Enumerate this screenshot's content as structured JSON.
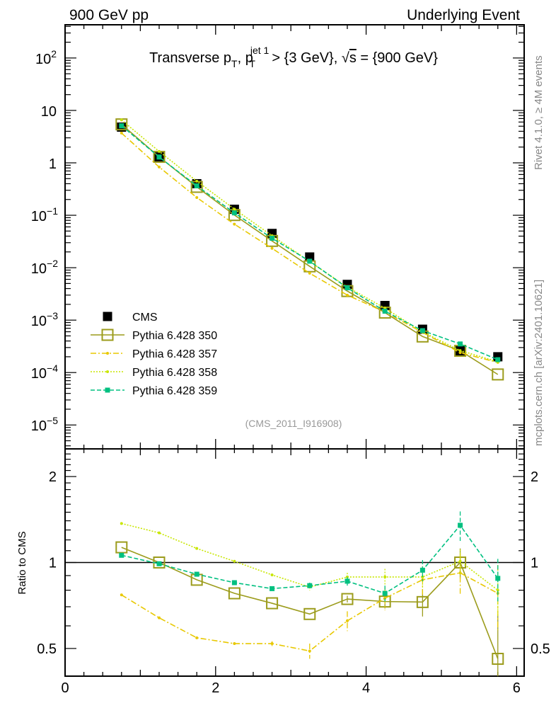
{
  "header": {
    "left": "900 GeV pp",
    "right": "Underlying Event"
  },
  "side_text": {
    "rivet": "Rivet 4.1.0, ≥ 4M events",
    "mcplots": "mcplots.cern.ch [arXiv:2401.10621]"
  },
  "chart_data": {
    "type": "line",
    "title": "Transverse p_T, p_T^{jet 1} > {3 GeV}, √s = {900 GeV}",
    "title_parts": {
      "a": "Transverse p",
      "sub1": "T",
      "b": ", p",
      "sup2": "jet 1",
      "sub2": "T",
      "c": " > {3 GeV}, ",
      "sqrt": "√",
      "s": "s",
      "d": " = {900 GeV}"
    },
    "analysis_label": "(CMS_2011_I916908)",
    "xlim": [
      0,
      6.1
    ],
    "x_ticks": [
      0,
      2,
      4,
      6
    ],
    "x_tick_labels": [
      "0",
      "2",
      "4",
      "6"
    ],
    "main": {
      "yscale": "log",
      "ylim": [
        3.5e-06,
        430
      ],
      "y_tick_labels": [
        {
          "value": 100,
          "base": "10",
          "exp": "2"
        },
        {
          "value": 10,
          "base": "10",
          "exp": ""
        },
        {
          "value": 1,
          "base": "1",
          "exp": ""
        },
        {
          "value": 0.1,
          "base": "10",
          "exp": "−1"
        },
        {
          "value": 0.01,
          "base": "10",
          "exp": "−2"
        },
        {
          "value": 0.001,
          "base": "10",
          "exp": "−3"
        },
        {
          "value": 0.0001,
          "base": "10",
          "exp": "−4"
        },
        {
          "value": 1e-05,
          "base": "10",
          "exp": "−5"
        }
      ],
      "legend_position": "lower-left"
    },
    "ratio": {
      "ylabel": "Ratio to CMS",
      "yscale": "log",
      "ylim": [
        0.4,
        2.5
      ],
      "y_ticks": [
        0.5,
        1,
        2
      ],
      "y_tick_labels": [
        "0.5",
        "1",
        "2"
      ]
    },
    "x": [
      0.75,
      1.25,
      1.75,
      2.25,
      2.75,
      3.25,
      3.75,
      4.25,
      4.75,
      5.25,
      5.75
    ],
    "data": {
      "name": "CMS",
      "color": "#000000",
      "values": [
        4.8,
        1.3,
        0.4,
        0.13,
        0.045,
        0.016,
        0.0048,
        0.0019,
        0.00067,
        0.00026,
        0.0002
      ]
    },
    "series": [
      {
        "name": "Pythia 6.428 350",
        "color": "#9c9c1c",
        "style": "solid",
        "marker": "open-square",
        "values": [
          5.42,
          1.3,
          0.348,
          0.101,
          0.0324,
          0.0106,
          0.00358,
          0.00139,
          0.000487,
          0.00026,
          9.2e-05
        ],
        "ratio": [
          1.13,
          1.0,
          0.87,
          0.78,
          0.72,
          0.66,
          0.745,
          0.73,
          0.727,
          1.0,
          0.46
        ],
        "ratio_err": [
          0,
          0,
          0,
          0,
          0,
          0,
          0.02,
          0.04,
          0.08,
          0.12,
          0.2
        ]
      },
      {
        "name": "Pythia 6.428 357",
        "color": "#e8c800",
        "style": "dashdot",
        "marker": "dot",
        "values": [
          3.7,
          0.832,
          0.218,
          0.0676,
          0.0234,
          0.00784,
          0.003,
          0.00143,
          0.000583,
          0.000239,
          0.000156
        ],
        "ratio": [
          0.77,
          0.64,
          0.545,
          0.52,
          0.52,
          0.49,
          0.625,
          0.75,
          0.87,
          0.92,
          0.78
        ],
        "ratio_err": [
          0,
          0,
          0,
          0,
          0.01,
          0.03,
          0.05,
          0.07,
          0.1,
          0.15,
          0.2
        ]
      },
      {
        "name": "Pythia 6.428 358",
        "color": "#c8e600",
        "style": "dotted",
        "marker": "dot",
        "values": [
          6.58,
          1.65,
          0.448,
          0.131,
          0.0407,
          0.0131,
          0.00427,
          0.00169,
          0.000596,
          0.000263,
          0.00016
        ],
        "ratio": [
          1.37,
          1.27,
          1.12,
          1.01,
          0.905,
          0.82,
          0.89,
          0.89,
          0.89,
          1.01,
          0.8
        ],
        "ratio_err": [
          0,
          0,
          0,
          0,
          0,
          0.02,
          0.03,
          0.06,
          0.08,
          0.1,
          0.15
        ]
      },
      {
        "name": "Pythia 6.428 359",
        "color": "#00c080",
        "style": "dashed",
        "marker": "filled-square",
        "values": [
          5.09,
          1.29,
          0.364,
          0.111,
          0.0365,
          0.0133,
          0.00413,
          0.00148,
          0.00063,
          0.000351,
          0.000176
        ],
        "ratio": [
          1.06,
          0.99,
          0.91,
          0.85,
          0.81,
          0.83,
          0.86,
          0.78,
          0.94,
          1.35,
          0.88
        ],
        "ratio_err": [
          0,
          0,
          0,
          0,
          0,
          0.02,
          0.03,
          0.05,
          0.08,
          0.16,
          0.15
        ]
      }
    ]
  }
}
